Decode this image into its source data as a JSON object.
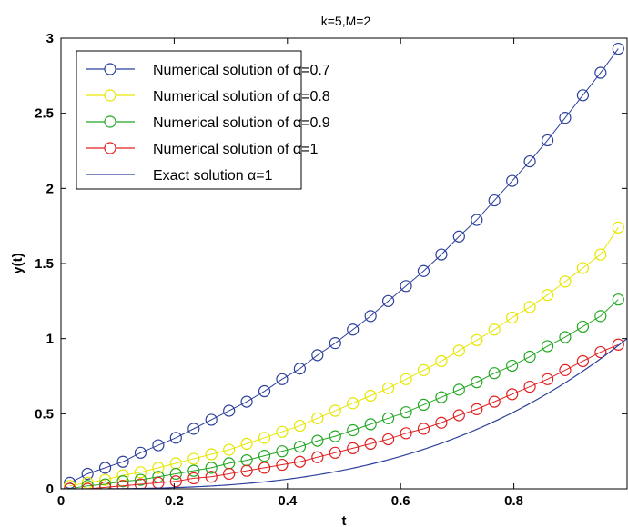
{
  "chart_data": {
    "type": "line",
    "title": "k=5,M=2",
    "xlabel": "t",
    "ylabel": "y(t)",
    "xlim": [
      0,
      1
    ],
    "ylim": [
      0,
      3
    ],
    "xticks": [
      0,
      0.2,
      0.4,
      0.6,
      0.8
    ],
    "xtick_labels": [
      "0",
      "0.2",
      "0.4",
      "0.6",
      "0.8"
    ],
    "yticks": [
      0,
      0.5,
      1,
      1.5,
      2,
      2.5,
      3
    ],
    "ytick_labels": [
      "0",
      "0.5",
      "1",
      "1.5",
      "2",
      "2.5",
      "3"
    ],
    "grid": false,
    "legend_position": "top-left",
    "x": [
      0.0156,
      0.0469,
      0.0781,
      0.1094,
      0.1406,
      0.1719,
      0.2031,
      0.2344,
      0.2656,
      0.2969,
      0.3281,
      0.3594,
      0.3906,
      0.4219,
      0.4531,
      0.4844,
      0.5156,
      0.5469,
      0.5781,
      0.6094,
      0.6406,
      0.6719,
      0.7031,
      0.7344,
      0.7656,
      0.7969,
      0.8281,
      0.8594,
      0.8906,
      0.9219,
      0.9531,
      0.9844
    ],
    "series": [
      {
        "name": "Numerical solution of α=0.7",
        "color": "#2b3f9c",
        "marker": "circle",
        "values": [
          0.04,
          0.1,
          0.14,
          0.18,
          0.24,
          0.29,
          0.34,
          0.4,
          0.46,
          0.52,
          0.58,
          0.65,
          0.73,
          0.8,
          0.89,
          0.97,
          1.06,
          1.15,
          1.25,
          1.35,
          1.45,
          1.56,
          1.68,
          1.79,
          1.92,
          2.05,
          2.18,
          2.32,
          2.47,
          2.62,
          2.77,
          2.93
        ]
      },
      {
        "name": "Numerical solution of α=0.8",
        "color": "#e6e600",
        "marker": "circle",
        "values": [
          0.02,
          0.04,
          0.06,
          0.09,
          0.11,
          0.14,
          0.17,
          0.2,
          0.23,
          0.26,
          0.3,
          0.34,
          0.38,
          0.42,
          0.47,
          0.52,
          0.57,
          0.62,
          0.67,
          0.73,
          0.79,
          0.85,
          0.92,
          0.99,
          1.06,
          1.14,
          1.21,
          1.29,
          1.38,
          1.47,
          1.56,
          1.74
        ]
      },
      {
        "name": "Numerical solution of α=0.9",
        "color": "#22a822",
        "marker": "circle",
        "values": [
          0.0,
          0.02,
          0.03,
          0.05,
          0.06,
          0.08,
          0.1,
          0.12,
          0.14,
          0.17,
          0.19,
          0.22,
          0.25,
          0.28,
          0.32,
          0.35,
          0.39,
          0.43,
          0.47,
          0.51,
          0.56,
          0.61,
          0.66,
          0.71,
          0.77,
          0.82,
          0.88,
          0.95,
          1.01,
          1.08,
          1.15,
          1.26
        ]
      },
      {
        "name": "Numerical solution of α=1",
        "color": "#e02020",
        "marker": "circle",
        "values": [
          0.0,
          0.0,
          0.01,
          0.02,
          0.03,
          0.04,
          0.05,
          0.07,
          0.08,
          0.1,
          0.12,
          0.14,
          0.16,
          0.18,
          0.21,
          0.24,
          0.27,
          0.3,
          0.33,
          0.37,
          0.4,
          0.44,
          0.49,
          0.53,
          0.58,
          0.63,
          0.68,
          0.73,
          0.79,
          0.85,
          0.91,
          0.96
        ]
      },
      {
        "name": "Exact solution α=1",
        "color": "#2b3f9c",
        "marker": "none",
        "function": "t^3"
      }
    ]
  }
}
